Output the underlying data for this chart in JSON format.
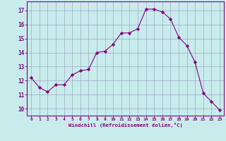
{
  "x": [
    0,
    1,
    2,
    3,
    4,
    5,
    6,
    7,
    8,
    9,
    10,
    11,
    12,
    13,
    14,
    15,
    16,
    17,
    18,
    19,
    20,
    21,
    22,
    23
  ],
  "y": [
    12.2,
    11.5,
    11.2,
    11.7,
    11.7,
    12.4,
    12.7,
    12.8,
    14.0,
    14.1,
    14.6,
    15.4,
    15.4,
    15.7,
    17.1,
    17.1,
    16.9,
    16.4,
    15.1,
    14.5,
    13.3,
    11.1,
    10.5,
    9.9
  ],
  "line_color": "#800080",
  "marker": "D",
  "marker_size": 2.2,
  "bg_color": "#c8ecec",
  "grid_color": "#a0a8c8",
  "xlabel": "Windchill (Refroidissement éolien,°C)",
  "tick_color": "#800080",
  "spine_color": "#800080",
  "ylabel_ticks": [
    10,
    11,
    12,
    13,
    14,
    15,
    16,
    17
  ],
  "xtick_labels": [
    "0",
    "1",
    "2",
    "3",
    "4",
    "5",
    "6",
    "7",
    "8",
    "9",
    "10",
    "11",
    "12",
    "13",
    "14",
    "15",
    "16",
    "17",
    "18",
    "19",
    "20",
    "21",
    "22",
    "23"
  ],
  "ylim": [
    9.5,
    17.65
  ],
  "xlim": [
    -0.5,
    23.5
  ]
}
